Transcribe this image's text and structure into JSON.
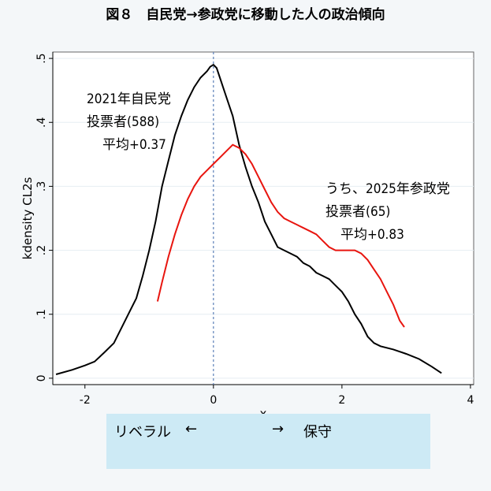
{
  "figure_title": "図８　自民党→参政党に移動した人の政治傾向",
  "chart_data": {
    "type": "line",
    "title": "図８　自民党→参政党に移動した人の政治傾向",
    "xlabel": "x",
    "ylabel": "kdensity CL2s",
    "xlim": [
      -2.5,
      4.05
    ],
    "ylim": [
      -0.01,
      0.51
    ],
    "x_ticks": [
      -2,
      0,
      2,
      4
    ],
    "x_tick_labels": [
      "-2",
      "0",
      "2",
      "4"
    ],
    "y_ticks": [
      0,
      0.1,
      0.2,
      0.3,
      0.4,
      0.5
    ],
    "y_tick_labels": [
      "0",
      ".1",
      ".2",
      ".3",
      ".4",
      ".5"
    ],
    "grid": "horizontal",
    "reference_line_x": 0,
    "series": [
      {
        "name": "2021年自民党投票者",
        "color": "#000000",
        "points": [
          [
            -2.45,
            0.006
          ],
          [
            -2.2,
            0.013
          ],
          [
            -2.0,
            0.02
          ],
          [
            -1.85,
            0.026
          ],
          [
            -1.7,
            0.04
          ],
          [
            -1.55,
            0.055
          ],
          [
            -1.4,
            0.085
          ],
          [
            -1.3,
            0.105
          ],
          [
            -1.2,
            0.125
          ],
          [
            -1.1,
            0.16
          ],
          [
            -1.0,
            0.2
          ],
          [
            -0.9,
            0.245
          ],
          [
            -0.8,
            0.3
          ],
          [
            -0.7,
            0.34
          ],
          [
            -0.6,
            0.38
          ],
          [
            -0.5,
            0.41
          ],
          [
            -0.4,
            0.435
          ],
          [
            -0.3,
            0.455
          ],
          [
            -0.2,
            0.47
          ],
          [
            -0.1,
            0.48
          ],
          [
            -0.05,
            0.487
          ],
          [
            0.0,
            0.49
          ],
          [
            0.05,
            0.485
          ],
          [
            0.1,
            0.47
          ],
          [
            0.15,
            0.455
          ],
          [
            0.2,
            0.44
          ],
          [
            0.3,
            0.41
          ],
          [
            0.4,
            0.365
          ],
          [
            0.5,
            0.33
          ],
          [
            0.6,
            0.3
          ],
          [
            0.7,
            0.275
          ],
          [
            0.8,
            0.245
          ],
          [
            0.9,
            0.225
          ],
          [
            1.0,
            0.205
          ],
          [
            1.1,
            0.2
          ],
          [
            1.2,
            0.195
          ],
          [
            1.3,
            0.19
          ],
          [
            1.4,
            0.18
          ],
          [
            1.5,
            0.175
          ],
          [
            1.6,
            0.165
          ],
          [
            1.7,
            0.16
          ],
          [
            1.8,
            0.155
          ],
          [
            1.9,
            0.145
          ],
          [
            2.0,
            0.135
          ],
          [
            2.1,
            0.12
          ],
          [
            2.2,
            0.1
          ],
          [
            2.3,
            0.085
          ],
          [
            2.4,
            0.065
          ],
          [
            2.5,
            0.055
          ],
          [
            2.6,
            0.05
          ],
          [
            2.8,
            0.045
          ],
          [
            3.0,
            0.038
          ],
          [
            3.2,
            0.03
          ],
          [
            3.4,
            0.018
          ],
          [
            3.55,
            0.008
          ]
        ]
      },
      {
        "name": "うち、2025年参政党投票者",
        "color": "#e8150f",
        "points": [
          [
            -0.87,
            0.12
          ],
          [
            -0.8,
            0.15
          ],
          [
            -0.7,
            0.19
          ],
          [
            -0.6,
            0.225
          ],
          [
            -0.5,
            0.255
          ],
          [
            -0.4,
            0.28
          ],
          [
            -0.3,
            0.3
          ],
          [
            -0.2,
            0.315
          ],
          [
            -0.1,
            0.325
          ],
          [
            0.0,
            0.335
          ],
          [
            0.1,
            0.345
          ],
          [
            0.2,
            0.355
          ],
          [
            0.3,
            0.365
          ],
          [
            0.4,
            0.36
          ],
          [
            0.5,
            0.35
          ],
          [
            0.6,
            0.335
          ],
          [
            0.7,
            0.315
          ],
          [
            0.8,
            0.295
          ],
          [
            0.9,
            0.275
          ],
          [
            1.0,
            0.26
          ],
          [
            1.1,
            0.25
          ],
          [
            1.2,
            0.245
          ],
          [
            1.3,
            0.24
          ],
          [
            1.4,
            0.235
          ],
          [
            1.5,
            0.23
          ],
          [
            1.6,
            0.225
          ],
          [
            1.7,
            0.215
          ],
          [
            1.8,
            0.205
          ],
          [
            1.9,
            0.2
          ],
          [
            2.0,
            0.2
          ],
          [
            2.1,
            0.2
          ],
          [
            2.2,
            0.2
          ],
          [
            2.3,
            0.195
          ],
          [
            2.4,
            0.185
          ],
          [
            2.5,
            0.17
          ],
          [
            2.6,
            0.155
          ],
          [
            2.7,
            0.135
          ],
          [
            2.8,
            0.115
          ],
          [
            2.9,
            0.09
          ],
          [
            2.97,
            0.08
          ]
        ]
      }
    ],
    "annotations": [
      {
        "lines": [
          "2021年自民党",
          "投票者(588)",
          "平均+0.37"
        ]
      },
      {
        "lines": [
          "うち、2025年参政党",
          "投票者(65)",
          "平均+0.83"
        ]
      }
    ]
  },
  "direction_box": {
    "left_label": "リベラル",
    "left_arrow": "←",
    "right_arrow": "→",
    "right_label": "保守"
  }
}
